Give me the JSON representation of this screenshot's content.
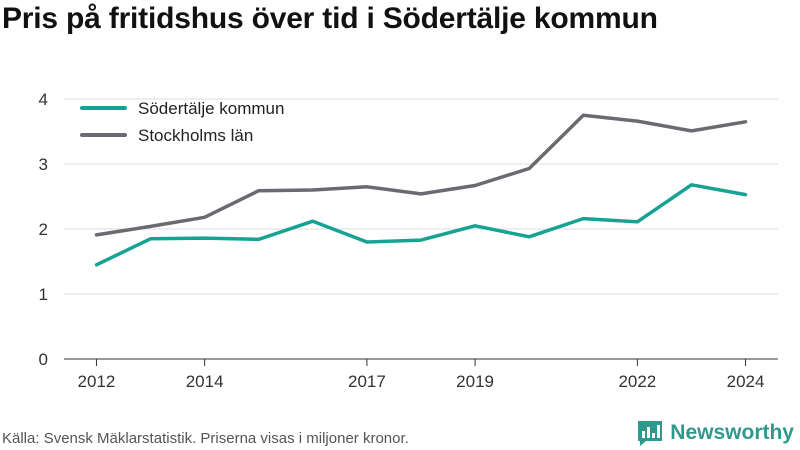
{
  "title": "Pris på fritidshus över tid i Södertälje kommun",
  "source": "Källa: Svensk Mäklarstatistik. Priserna visas i miljoner kronor.",
  "brand": {
    "name": "Newsworthy",
    "icon": "newsworthy-logo-icon",
    "color": "#2f9a8c"
  },
  "chart_data": {
    "type": "line",
    "title": "Pris på fritidshus över tid i Södertälje kommun",
    "xlabel": "",
    "ylabel": "",
    "x": [
      2012,
      2013,
      2014,
      2015,
      2016,
      2017,
      2018,
      2019,
      2020,
      2021,
      2022,
      2023,
      2024
    ],
    "x_ticks": [
      2012,
      2014,
      2017,
      2019,
      2022,
      2024
    ],
    "y_ticks": [
      0,
      1,
      2,
      3,
      4
    ],
    "xlim": [
      2011.4,
      2024.6
    ],
    "ylim": [
      0,
      4
    ],
    "grid": true,
    "legend_position": "top-left",
    "series": [
      {
        "name": "Södertälje kommun",
        "color": "#16a394",
        "values": [
          1.45,
          1.85,
          1.86,
          1.84,
          2.12,
          1.8,
          1.83,
          2.05,
          1.88,
          2.16,
          2.11,
          2.68,
          2.53
        ]
      },
      {
        "name": "Stockholms län",
        "color": "#6b6a70",
        "values": [
          1.91,
          2.04,
          2.18,
          2.59,
          2.6,
          2.65,
          2.54,
          2.67,
          2.93,
          3.75,
          3.66,
          3.51,
          3.65
        ]
      }
    ]
  }
}
